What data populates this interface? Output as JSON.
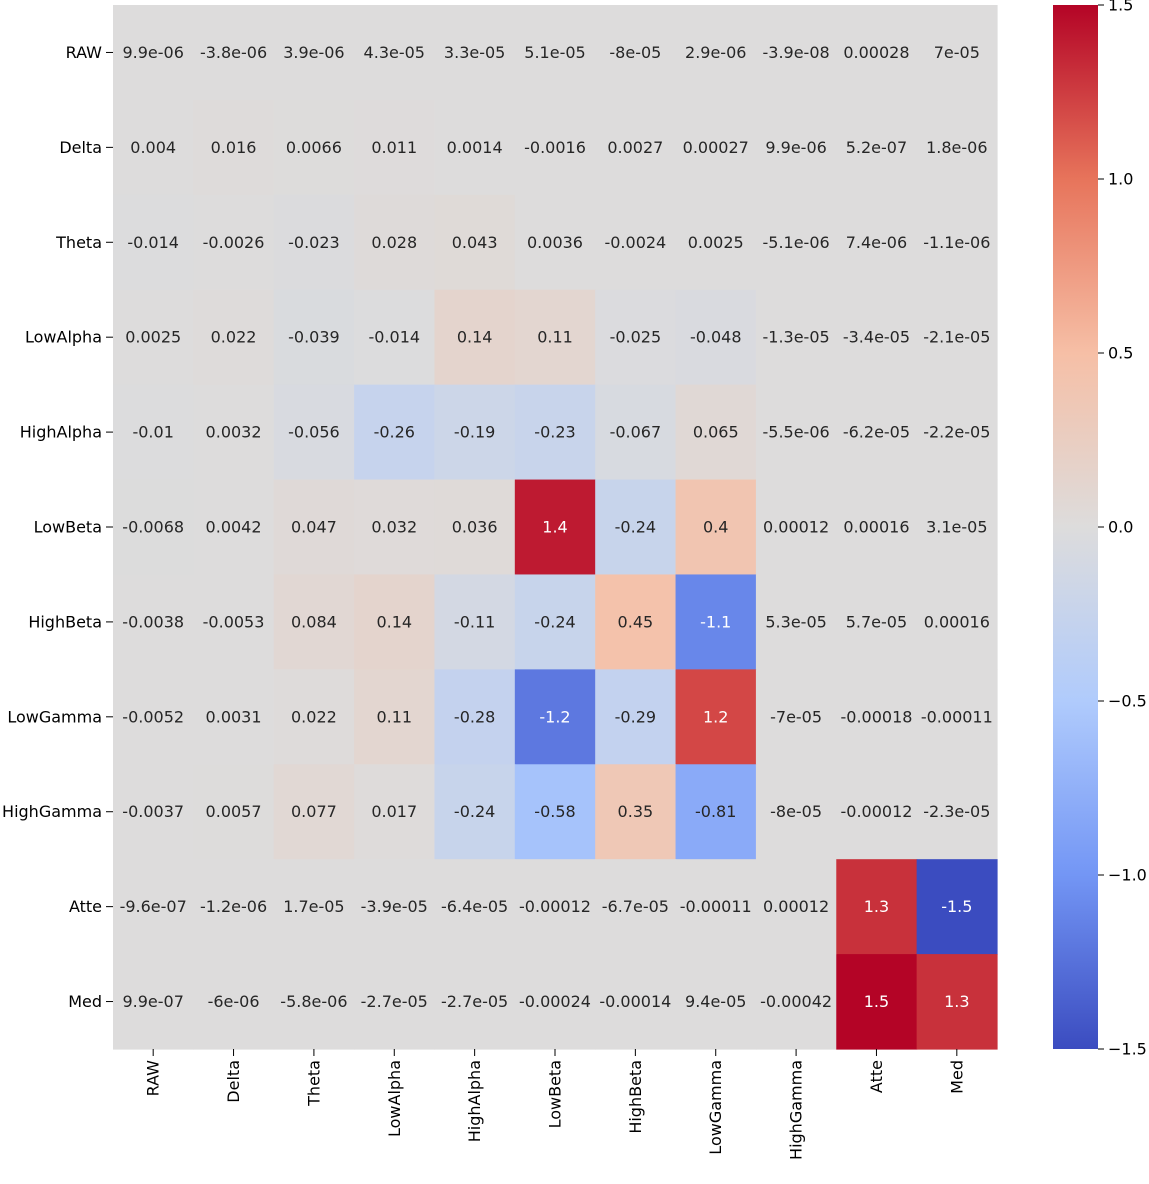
{
  "chart_data": {
    "type": "heatmap",
    "title": "",
    "xlabel": "",
    "ylabel": "",
    "row_labels": [
      "RAW",
      "Delta",
      "Theta",
      "LowAlpha",
      "HighAlpha",
      "LowBeta",
      "HighBeta",
      "LowGamma",
      "HighGamma",
      "Atte",
      "Med"
    ],
    "col_labels": [
      "RAW",
      "Delta",
      "Theta",
      "LowAlpha",
      "HighAlpha",
      "LowBeta",
      "HighBeta",
      "LowGamma",
      "HighGamma",
      "Atte",
      "Med"
    ],
    "value_labels": [
      [
        "9.9e-06",
        "-3.8e-06",
        "3.9e-06",
        "4.3e-05",
        "3.3e-05",
        "5.1e-05",
        "-8e-05",
        "2.9e-06",
        "-3.9e-08",
        "0.00028",
        "7e-05"
      ],
      [
        "0.004",
        "0.016",
        "0.0066",
        "0.011",
        "0.0014",
        "-0.0016",
        "0.0027",
        "0.00027",
        "9.9e-06",
        "5.2e-07",
        "1.8e-06"
      ],
      [
        "-0.014",
        "-0.0026",
        "-0.023",
        "0.028",
        "0.043",
        "0.0036",
        "-0.0024",
        "0.0025",
        "-5.1e-06",
        "7.4e-06",
        "-1.1e-06"
      ],
      [
        "0.0025",
        "0.022",
        "-0.039",
        "-0.014",
        "0.14",
        "0.11",
        "-0.025",
        "-0.048",
        "-1.3e-05",
        "-3.4e-05",
        "-2.1e-05"
      ],
      [
        "-0.01",
        "0.0032",
        "-0.056",
        "-0.26",
        "-0.19",
        "-0.23",
        "-0.067",
        "0.065",
        "-5.5e-06",
        "-6.2e-05",
        "-2.2e-05"
      ],
      [
        "-0.0068",
        "0.0042",
        "0.047",
        "0.032",
        "0.036",
        "1.4",
        "-0.24",
        "0.4",
        "0.00012",
        "0.00016",
        "3.1e-05"
      ],
      [
        "-0.0038",
        "-0.0053",
        "0.084",
        "0.14",
        "-0.11",
        "-0.24",
        "0.45",
        "-1.1",
        "5.3e-05",
        "5.7e-05",
        "0.00016"
      ],
      [
        "-0.0052",
        "0.0031",
        "0.022",
        "0.11",
        "-0.28",
        "-1.2",
        "-0.29",
        "1.2",
        "-7e-05",
        "-0.00018",
        "-0.00011"
      ],
      [
        "-0.0037",
        "0.0057",
        "0.077",
        "0.017",
        "-0.24",
        "-0.58",
        "0.35",
        "-0.81",
        "-8e-05",
        "-0.00012",
        "-2.3e-05"
      ],
      [
        "-9.6e-07",
        "-1.2e-06",
        "1.7e-05",
        "-3.9e-05",
        "-6.4e-05",
        "-0.00012",
        "-6.7e-05",
        "-0.00011",
        "0.00012",
        "1.3",
        "-1.5"
      ],
      [
        "9.9e-07",
        "-6e-06",
        "-5.8e-06",
        "-2.7e-05",
        "-2.7e-05",
        "-0.00024",
        "-0.00014",
        "9.4e-05",
        "-0.00042",
        "1.5",
        "1.3"
      ]
    ],
    "value_range": [
      -1.5,
      1.5
    ],
    "colormap": "coolwarm",
    "colormap_stops": [
      "#3b4cc0",
      "#7396f5",
      "#b0cbfc",
      "#dddcdc",
      "#f6bfa6",
      "#e7745b",
      "#b40426"
    ],
    "colorbar_ticks": [
      1.5,
      1.0,
      0.5,
      0.0,
      -0.5,
      -1.0,
      -1.5
    ],
    "colorbar_tick_labels": [
      "1.5",
      "1.0",
      "0.5",
      "0.0",
      "−0.5",
      "−1.0",
      "−1.5"
    ]
  }
}
